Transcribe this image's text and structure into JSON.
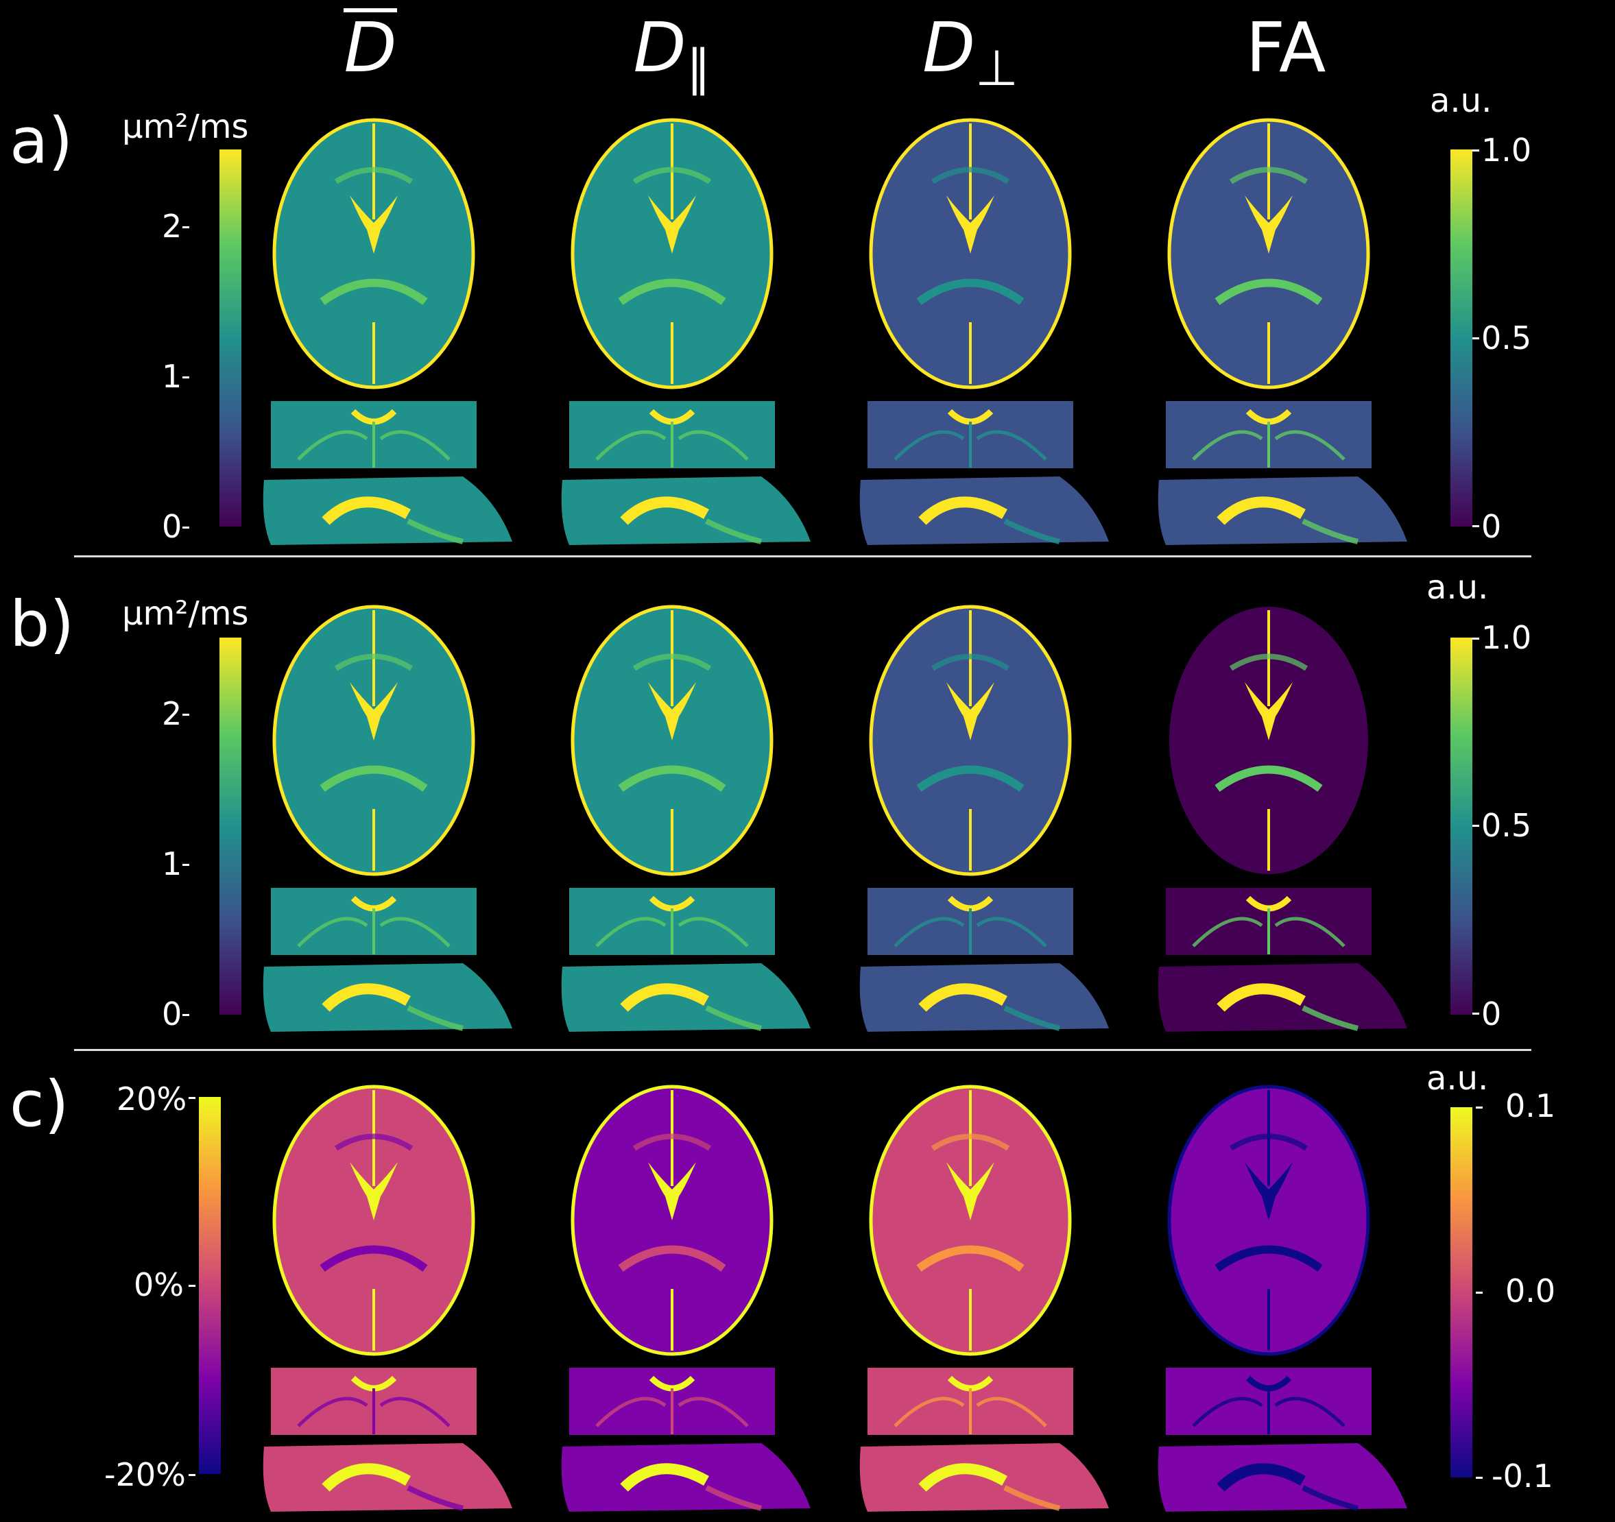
{
  "columns": [
    {
      "symbol": "D",
      "subscript": "",
      "overline": true
    },
    {
      "symbol": "D",
      "subscript": "∥",
      "overline": false
    },
    {
      "symbol": "D",
      "subscript": "⊥",
      "overline": false
    },
    {
      "symbol": "FA",
      "subscript": "",
      "overline": false
    }
  ],
  "rows": [
    {
      "label": "a)",
      "left_unit": "μm²/ms",
      "left_ticks": [
        "2",
        "1",
        "0"
      ],
      "right_unit": "a.u.",
      "right_ticks": [
        "1.0",
        "0.5",
        "0"
      ]
    },
    {
      "label": "b)",
      "left_unit": "μm²/ms",
      "left_ticks": [
        "2",
        "1",
        "0"
      ],
      "right_unit": "a.u.",
      "right_ticks": [
        "1.0",
        "0.5",
        "0"
      ]
    },
    {
      "label": "c)",
      "left_unit": "",
      "left_ticks": [
        "20%",
        "0%",
        "-20%"
      ],
      "right_unit": "a.u.",
      "right_ticks": [
        "0.1",
        "0.0",
        "-0.1"
      ]
    }
  ],
  "colormaps": {
    "viridis": [
      "#440154",
      "#3b528b",
      "#21918c",
      "#5ec962",
      "#fde725"
    ],
    "plasma": [
      "#0d0887",
      "#7e03a8",
      "#cc4778",
      "#f89540",
      "#f0f921"
    ]
  }
}
